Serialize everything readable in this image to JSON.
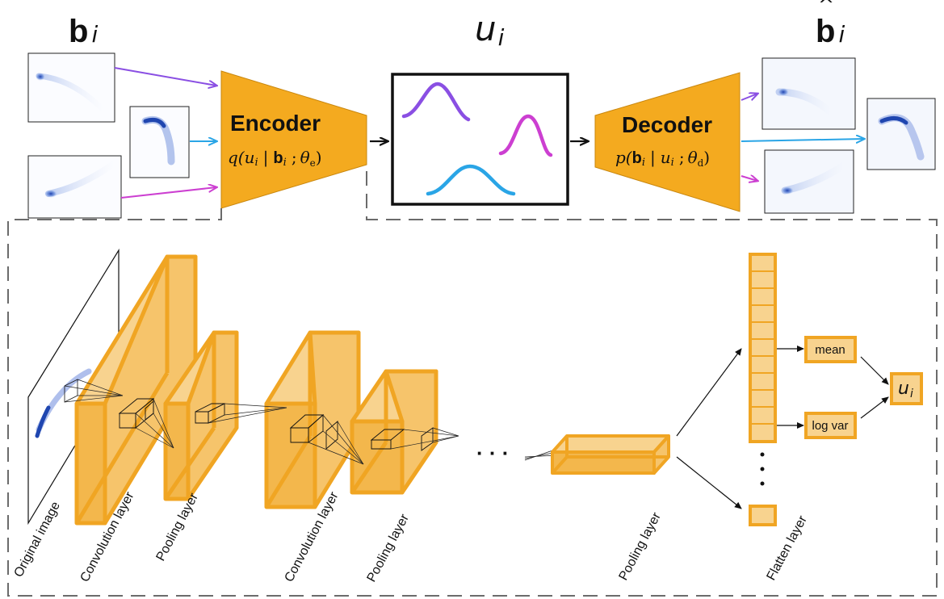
{
  "header": {
    "b_i": {
      "base": "b",
      "sub": "i"
    },
    "u_i": {
      "base": "u",
      "sub": "i"
    },
    "b_hat_i": {
      "base": "b",
      "sub": "i",
      "hat": "^"
    }
  },
  "encoder": {
    "title": "Encoder",
    "formula": {
      "fn": "q(",
      "u": "u",
      "i1": "i",
      "mid": "|",
      "b": "b",
      "i2": "i",
      "sep": ";",
      "theta": "θ",
      "theta_sub": "e",
      "close": ")"
    }
  },
  "decoder": {
    "title": "Decoder",
    "formula": {
      "fn": "p(",
      "b": "b",
      "i1": "i",
      "mid": "|",
      "u": "u",
      "i2": "i",
      "sep": ";",
      "theta": "θ",
      "theta_sub": "d",
      "close": ")"
    }
  },
  "latent": {
    "curves": [
      {
        "color": "#8a4fe3"
      },
      {
        "color": "#cc3fd1"
      },
      {
        "color": "#2aa5e6"
      }
    ]
  },
  "arrow_colors": {
    "purple": "#8a4fe3",
    "blue": "#2aa5e6",
    "magenta": "#cc3fd1",
    "black": "#111111"
  },
  "layer_color": {
    "fill": "#f6c46b",
    "stroke": "#f0a523"
  },
  "cnn": {
    "ellipsis": "· · ·",
    "mean_label": "mean",
    "logvar_label": "log var",
    "output": {
      "base": "u",
      "sub": "i"
    },
    "layer_labels": {
      "original": "Original image",
      "conv1": "Convolution layer",
      "pool1": "Pooling layer",
      "conv2": "Convolution layer",
      "pool2": "Pooling layer",
      "pool3": "Pooling layer",
      "flatten": "Flatten layer"
    }
  }
}
